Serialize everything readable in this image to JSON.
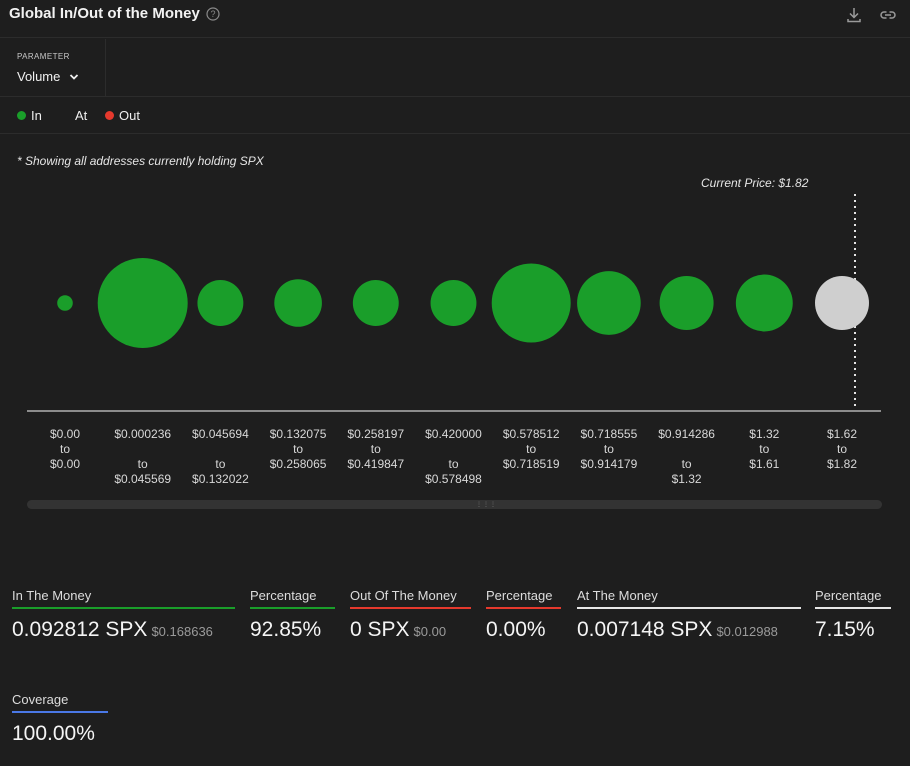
{
  "header": {
    "title": "Global In/Out of the Money",
    "help_icon": "question-circle-icon",
    "download_icon": "download-icon",
    "link_icon": "link-icon"
  },
  "parameter": {
    "label": "PARAMETER",
    "value": "Volume"
  },
  "legend": [
    {
      "label": "In",
      "color": "#1a9e2a"
    },
    {
      "label": "At",
      "color": ""
    },
    {
      "label": "Out",
      "color": "#e5392d"
    }
  ],
  "note": "* Showing all addresses currently holding SPX",
  "current_price_label": "Current Price: $1.82",
  "chart_data": {
    "type": "bubble",
    "colors": {
      "in": "#1a9e2a",
      "at": "#cfcfcf"
    },
    "bins": [
      {
        "from": "$0.00",
        "to": "$0.00",
        "status": "in",
        "volume": 0.03
      },
      {
        "from": "$0.000236",
        "to": "$0.045569",
        "status": "in",
        "volume": 1.0
      },
      {
        "from": "$0.045694",
        "to": "$0.132022",
        "status": "in",
        "volume": 0.26
      },
      {
        "from": "$0.132075",
        "to": "$0.258065",
        "status": "in",
        "volume": 0.28
      },
      {
        "from": "$0.258197",
        "to": "$0.419847",
        "status": "in",
        "volume": 0.26
      },
      {
        "from": "$0.420000",
        "to": "$0.578498",
        "status": "in",
        "volume": 0.26
      },
      {
        "from": "$0.578512",
        "to": "$0.718519",
        "status": "in",
        "volume": 0.77
      },
      {
        "from": "$0.718555",
        "to": "$0.914179",
        "status": "in",
        "volume": 0.5
      },
      {
        "from": "$0.914286",
        "to": "$1.32",
        "status": "in",
        "volume": 0.36
      },
      {
        "from": "$1.32",
        "to": "$1.61",
        "status": "in",
        "volume": 0.4
      },
      {
        "from": "$1.62",
        "to": "$1.82",
        "status": "at",
        "volume": 0.36
      }
    ],
    "current_price": 1.82
  },
  "stats": [
    {
      "label": "In The Money",
      "value": "0.092812 SPX",
      "sub": "$0.168636",
      "color": "#1a9e2a"
    },
    {
      "label": "Percentage",
      "value": "92.85%",
      "sub": "",
      "color": "#1a9e2a"
    },
    {
      "label": "Out Of The Money",
      "value": "0 SPX",
      "sub": "$0.00",
      "color": "#e5392d"
    },
    {
      "label": "Percentage",
      "value": "0.00%",
      "sub": "",
      "color": "#e5392d"
    },
    {
      "label": "At The Money",
      "value": "0.007148 SPX",
      "sub": "$0.012988",
      "color": "#e6e6e6"
    },
    {
      "label": "Percentage",
      "value": "7.15%",
      "sub": "",
      "color": "#e6e6e6"
    },
    {
      "label": "Coverage",
      "value": "100.00%",
      "sub": "",
      "color": "#4a78e6"
    }
  ]
}
